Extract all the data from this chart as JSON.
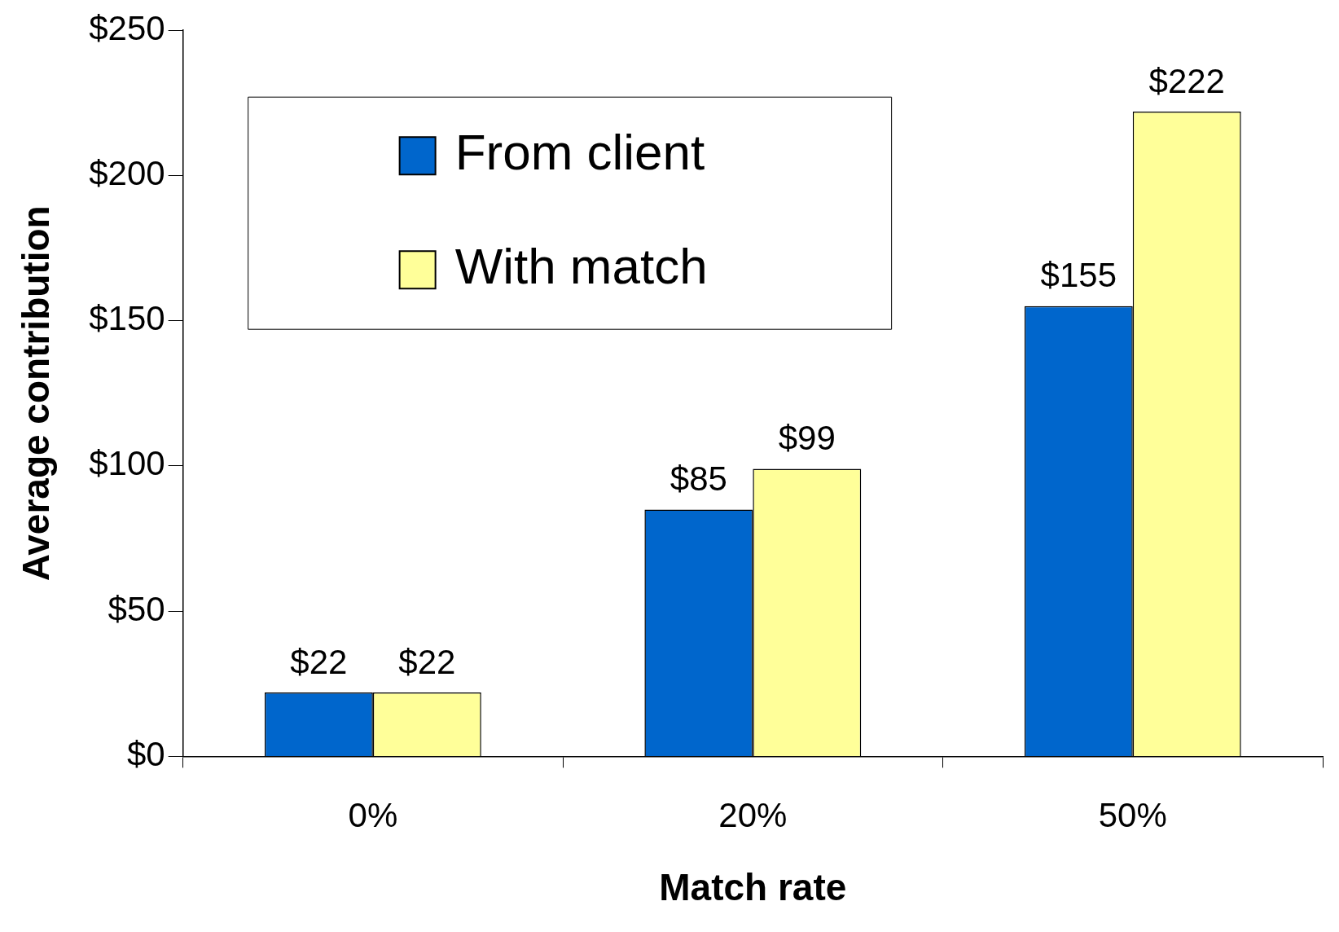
{
  "chart_data": {
    "type": "bar",
    "xlabel": "Match rate",
    "ylabel": "Average contribution",
    "categories": [
      "0%",
      "20%",
      "50%"
    ],
    "series": [
      {
        "name": "From client",
        "color": "#0066cc",
        "values": [
          22,
          85,
          155
        ],
        "value_labels": [
          "$22",
          "$85",
          "$155"
        ]
      },
      {
        "name": "With match",
        "color": "#ffff99",
        "values": [
          22,
          99,
          222
        ],
        "value_labels": [
          "$22",
          "$99",
          "$222"
        ]
      }
    ],
    "ylim": [
      0,
      250
    ],
    "yticks": [
      {
        "value": 0,
        "label": "$0"
      },
      {
        "value": 50,
        "label": "$50"
      },
      {
        "value": 100,
        "label": "$100"
      },
      {
        "value": 150,
        "label": "$150"
      },
      {
        "value": 200,
        "label": "$200"
      },
      {
        "value": 250,
        "label": "$250"
      }
    ],
    "grid": false,
    "legend": "top left"
  }
}
